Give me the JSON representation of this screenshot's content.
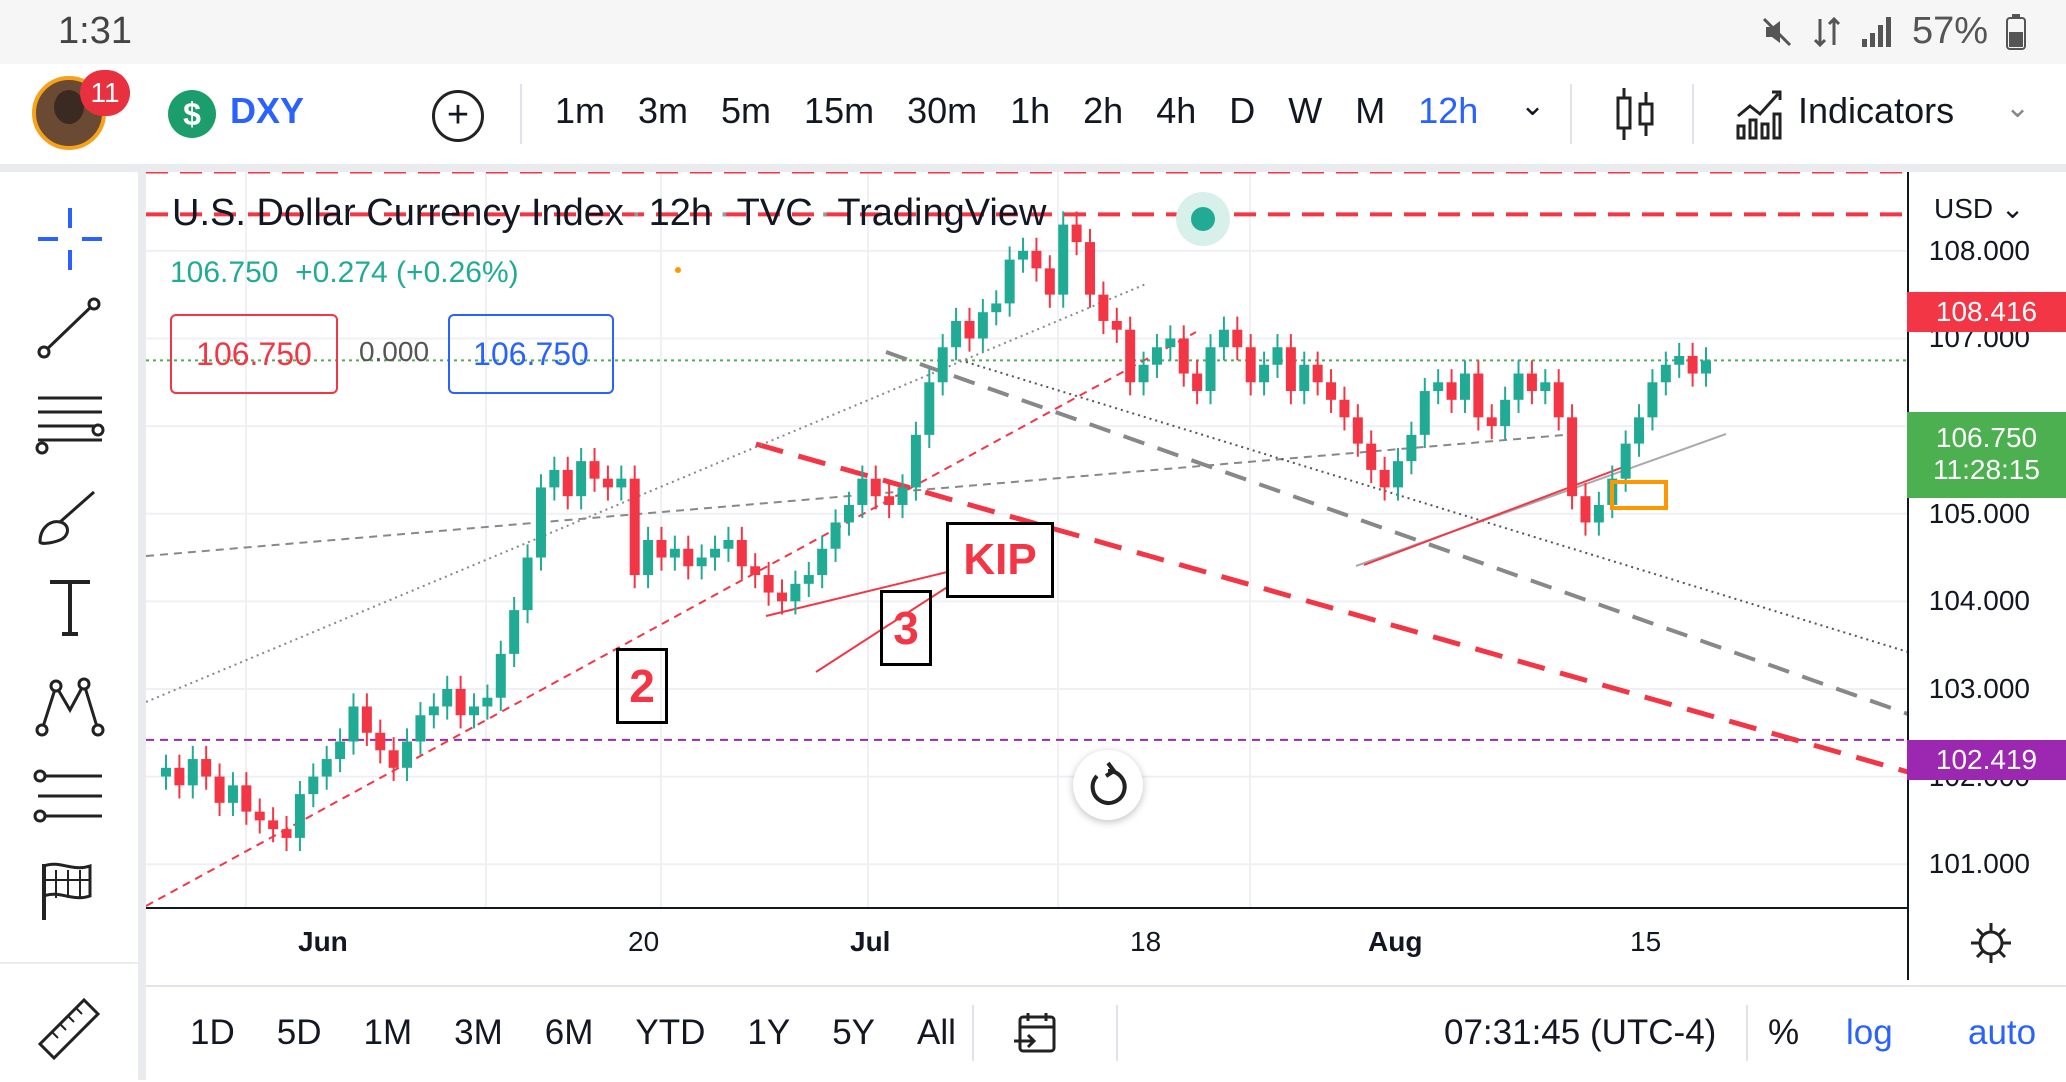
{
  "status_bar": {
    "time": "1:31",
    "battery": "57%"
  },
  "header": {
    "notification_count": "11",
    "symbol_icon": "$",
    "symbol": "DXY",
    "intervals": [
      "1m",
      "3m",
      "5m",
      "15m",
      "30m",
      "1h",
      "2h",
      "4h",
      "D",
      "W",
      "M",
      "12h"
    ],
    "active_interval": "12h",
    "indicators_label": "Indicators"
  },
  "legend": {
    "title": "U.S. Dollar Currency Index",
    "interval": "12h",
    "source": "TVC",
    "provider": "TradingView",
    "price": "106.750",
    "change": "+0.274 (+0.26%)",
    "sell_price": "106.750",
    "spread": "0.000",
    "buy_price": "106.750"
  },
  "price_axis": {
    "currency": "USD",
    "ticks": [
      "108.000",
      "107.000",
      "106.000",
      "105.000",
      "104.000",
      "103.000",
      "102.000",
      "101.000"
    ],
    "level_high": "108.416",
    "current_price": "106.750",
    "countdown": "11:28:15",
    "level_low": "102.419"
  },
  "time_axis": {
    "labels": [
      "Jun",
      "20",
      "Jul",
      "18",
      "Aug",
      "15"
    ]
  },
  "annotations": {
    "label_2": "2",
    "label_3": "3",
    "label_kip": "KIP"
  },
  "bottom": {
    "ranges": [
      "1D",
      "5D",
      "1M",
      "3M",
      "6M",
      "YTD",
      "1Y",
      "5Y",
      "All"
    ],
    "clock": "07:31:45 (UTC-4)",
    "percent": "%",
    "log": "log",
    "auto": "auto"
  },
  "colors": {
    "up": "#22ab94",
    "down": "#f23645",
    "accent": "#2962ff",
    "level_high": "#f23645",
    "level_low": "#9c27b0",
    "current": "#4caf50"
  },
  "chart_data": {
    "type": "candlestick",
    "title": "U.S. Dollar Currency Index",
    "interval": "12h",
    "ylim": [
      100.5,
      108.9
    ],
    "y_ticks": [
      101,
      102,
      103,
      104,
      105,
      106,
      107,
      108
    ],
    "x_labels": [
      "Jun",
      "20",
      "Jul",
      "18",
      "Aug",
      "15"
    ],
    "horizontal_levels": [
      108.416,
      102.419
    ],
    "current_price": 106.75,
    "closes": [
      102.1,
      101.9,
      102.2,
      102.0,
      101.7,
      101.9,
      101.6,
      101.5,
      101.4,
      101.3,
      101.8,
      102.0,
      102.2,
      102.4,
      102.8,
      102.5,
      102.3,
      102.1,
      102.4,
      102.7,
      102.8,
      103.0,
      102.7,
      102.8,
      102.9,
      103.4,
      103.9,
      104.5,
      105.3,
      105.5,
      105.2,
      105.6,
      105.4,
      105.3,
      105.4,
      104.3,
      104.7,
      104.5,
      104.6,
      104.4,
      104.5,
      104.6,
      104.7,
      104.4,
      104.3,
      104.1,
      104.0,
      104.2,
      104.3,
      104.6,
      104.9,
      105.1,
      105.4,
      105.2,
      105.1,
      105.3,
      105.9,
      106.5,
      106.9,
      107.2,
      107.0,
      107.3,
      107.4,
      107.9,
      108.0,
      107.8,
      107.5,
      108.3,
      108.1,
      107.5,
      107.2,
      107.1,
      106.5,
      106.7,
      106.9,
      107.0,
      106.6,
      106.4,
      106.9,
      107.1,
      106.9,
      106.5,
      106.7,
      106.9,
      106.4,
      106.7,
      106.5,
      106.3,
      106.1,
      105.8,
      105.5,
      105.3,
      105.6,
      105.9,
      106.4,
      106.5,
      106.3,
      106.6,
      106.1,
      106.0,
      106.3,
      106.6,
      106.4,
      106.5,
      106.1,
      105.2,
      104.9,
      105.1,
      105.4,
      105.8,
      106.1,
      106.5,
      106.7,
      106.8,
      106.6,
      106.75
    ]
  }
}
